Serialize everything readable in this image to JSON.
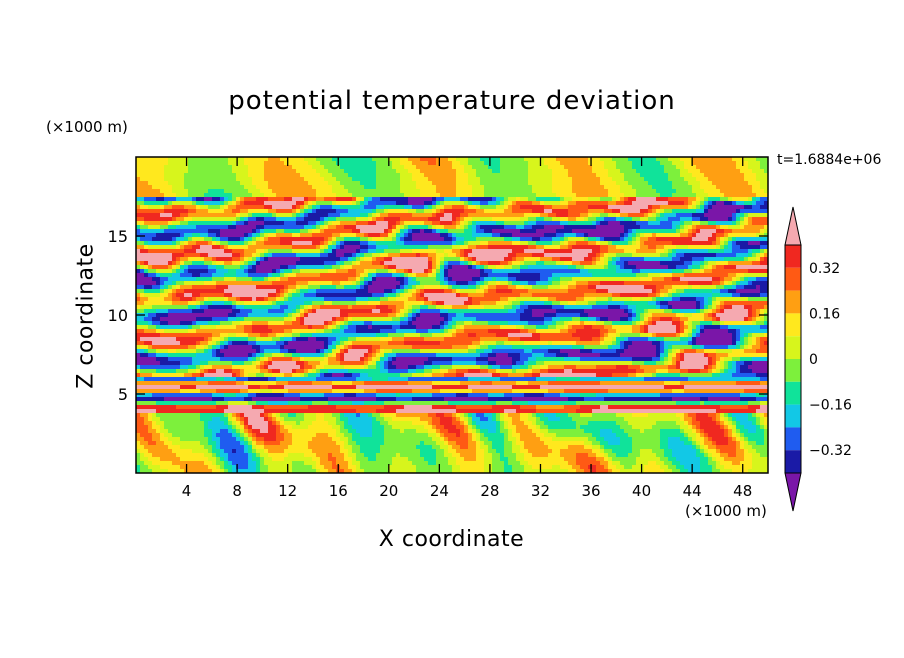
{
  "chart_data": {
    "type": "heatmap",
    "title": "potential temperature deviation",
    "xlabel": "X coordinate",
    "ylabel": "Z coordinate",
    "x_unit": "(×1000 m)",
    "y_unit": "(×1000 m)",
    "timestamp": "t=1.6884e+06",
    "xlim": [
      0,
      50
    ],
    "ylim": [
      0,
      20
    ],
    "x_ticks": [
      4,
      8,
      12,
      16,
      20,
      24,
      28,
      32,
      36,
      40,
      44,
      48
    ],
    "y_ticks": [
      5,
      10,
      15
    ],
    "colorbar": {
      "levels": [
        -0.4,
        -0.32,
        -0.24,
        -0.16,
        -0.08,
        0,
        0.08,
        0.16,
        0.24,
        0.32,
        0.4
      ],
      "tick_labels": [
        "0.32",
        "0.16",
        "0",
        "-0.16",
        "-0.32"
      ],
      "tick_values": [
        0.32,
        0.16,
        0,
        -0.16,
        -0.32
      ],
      "colors": [
        "#7a16a8",
        "#1a1aa6",
        "#1f5cf0",
        "#12c8e6",
        "#10e39a",
        "#7df03c",
        "#d7f51c",
        "#ffe81e",
        "#ff9f12",
        "#ff5a14",
        "#f02820",
        "#f5a9b0"
      ],
      "extend": "both"
    },
    "field_summary": "Layered flow: mixed turbulent structures below ~4 km, a strongly stratified band near 4–6 km (alternating high and low anomalies), tilted elongated warm (pink) and cold (purple) filaments between 6 and 17 km, and weaker near-zero anomalies above ~17 km."
  }
}
